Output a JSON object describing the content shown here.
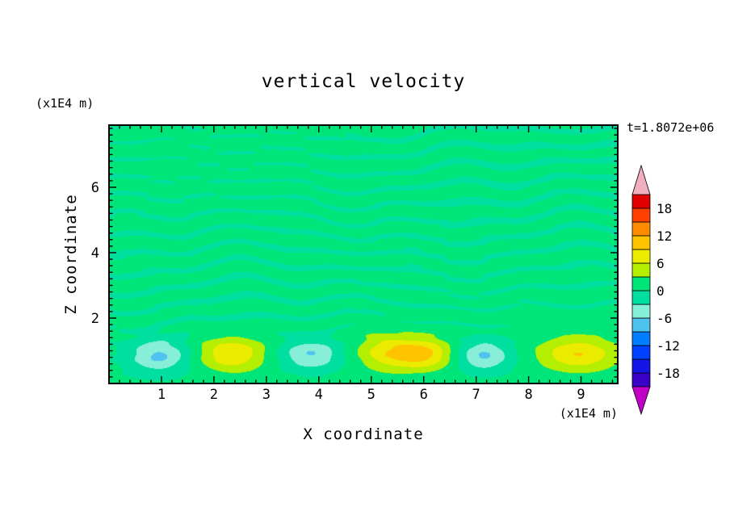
{
  "page": {
    "background": "#FFFFFF"
  },
  "chart_data": {
    "type": "heatmap",
    "title": "vertical velocity",
    "xlabel": "X coordinate",
    "ylabel": "Z coordinate",
    "x_unit_label": "(x1E4 m)",
    "z_unit_label": "(x1E4 m)",
    "time_annotation": "t=1.8072e+06",
    "xlim": [
      0,
      9.7
    ],
    "zlim": [
      0,
      7.9
    ],
    "x_ticks": [
      1,
      2,
      3,
      4,
      5,
      6,
      7,
      8,
      9
    ],
    "z_ticks": [
      2,
      4,
      6
    ],
    "minor_tick_step": 0.2,
    "grid": false,
    "legend_position": "right-colorbar",
    "contour_levels": {
      "min": -21,
      "max": 21,
      "step": 3
    },
    "colorbar": {
      "labels": [
        18,
        12,
        6,
        0,
        -6,
        -12,
        -18
      ],
      "band_colors_bottom_to_top": [
        "#3A00C8",
        "#1414E6",
        "#0041FF",
        "#007DFF",
        "#4FC3F0",
        "#87EED7",
        "#00DFA0",
        "#00E57A",
        "#B4EE00",
        "#EBEB00",
        "#FFC300",
        "#FF8C00",
        "#FF4000",
        "#E10000"
      ],
      "under_arrow_color": "#C300C8",
      "over_arrow_color": "#F0AEBE"
    },
    "field_model": {
      "offset": 0.6,
      "streak_layers": [
        {
          "amplitude": 1.6,
          "z_wavelength": 0.52,
          "phase_waves": [
            {
              "amp": 2.1,
              "k": 0.85,
              "zk": 0.5,
              "phi": 0.4
            },
            {
              "amp": 1.3,
              "k": 2.1,
              "zk": -0.7,
              "phi": 2.1
            },
            {
              "amp": 0.9,
              "k": 3.7,
              "zk": 1.1,
              "phi": 4.0
            }
          ],
          "mod_base": 0.72,
          "mod_amp": 0.38,
          "mod_kx": 0.42,
          "mod_kz": 0.31,
          "mod_phi1": 0.7,
          "mod_phi2": 1.9,
          "env_base": 0.55,
          "env_amp": 0.45,
          "env_z0": 1.7,
          "env_dz": 0.6
        },
        {
          "amplitude": 0.45,
          "z_wavelength": 0.27,
          "phase_waves": [
            {
              "amp": 1.6,
              "k": 1.5,
              "zk": 0.9,
              "phi": 1.0
            },
            {
              "amp": 1.0,
              "k": 4.2,
              "zk": -0.4,
              "phi": 3.3
            }
          ],
          "mod_base": 0.6,
          "mod_amp": 0.5,
          "mod_kx": 0.9,
          "mod_kz": 0.5,
          "mod_phi1": 2.2,
          "mod_phi2": 0.3,
          "env_base": 0.5,
          "env_amp": 0.5,
          "env_z0": 1.5,
          "env_dz": 0.7
        }
      ],
      "plumes": [
        {
          "x": 0.95,
          "z": 0.85,
          "rx": 0.55,
          "rz": 0.5,
          "amp": -7.2
        },
        {
          "x": 2.35,
          "z": 0.9,
          "rx": 0.62,
          "rz": 0.52,
          "amp": 8.2
        },
        {
          "x": 3.85,
          "z": 0.88,
          "rx": 0.55,
          "rz": 0.45,
          "amp": -6.8
        },
        {
          "x": 5.35,
          "z": 0.95,
          "rx": 0.6,
          "rz": 0.55,
          "amp": 7.6
        },
        {
          "x": 6.05,
          "z": 0.9,
          "rx": 0.52,
          "rz": 0.48,
          "amp": 7.9
        },
        {
          "x": 7.15,
          "z": 0.85,
          "rx": 0.5,
          "rz": 0.45,
          "amp": -7.0
        },
        {
          "x": 8.95,
          "z": 0.9,
          "rx": 0.75,
          "rz": 0.52,
          "amp": 8.4
        }
      ]
    }
  }
}
